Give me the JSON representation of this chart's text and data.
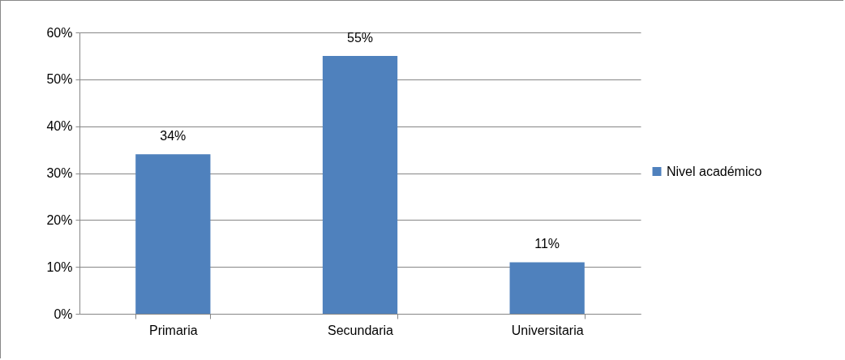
{
  "chart_data": {
    "type": "bar",
    "categories": [
      "Primaria",
      "Secundaria",
      "Universitaria"
    ],
    "series": [
      {
        "name": "Nivel académico",
        "color": "#4f81bd",
        "values": [
          34,
          55,
          11
        ],
        "value_labels": [
          "34%",
          "55%",
          "11%"
        ]
      }
    ],
    "ylim": [
      0,
      60
    ],
    "yticks": [
      {
        "value": 0,
        "label": "0%"
      },
      {
        "value": 10,
        "label": "10%"
      },
      {
        "value": 20,
        "label": "20%"
      },
      {
        "value": 30,
        "label": "30%"
      },
      {
        "value": 40,
        "label": "40%"
      },
      {
        "value": 50,
        "label": "50%"
      },
      {
        "value": 60,
        "label": "60%"
      }
    ],
    "grid": "y",
    "legend": "right"
  }
}
